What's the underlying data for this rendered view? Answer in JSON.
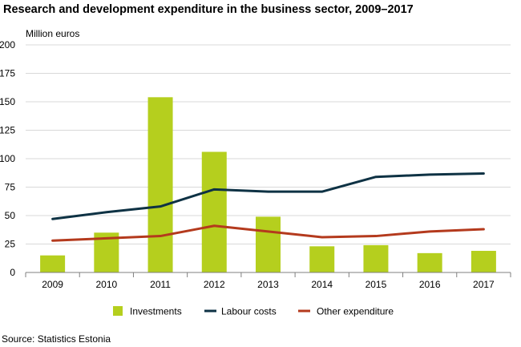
{
  "title": "Research and development expenditure in the business sector, 2009–2017",
  "source": "Source: Statistics Estonia",
  "colors": {
    "investments": "#b5cf1e",
    "labour_costs": "#0e3244",
    "other_expenditure": "#b43a1d",
    "grid": "#d9d9d9",
    "axis": "#7f7f7f"
  },
  "chart_data": {
    "type": "bar",
    "title": "Research and development expenditure in the business sector, 2009–2017",
    "ylabel": "Million euros",
    "xlabel": "",
    "ylim": [
      0,
      200
    ],
    "yticks": [
      0,
      25,
      50,
      75,
      100,
      125,
      150,
      175,
      200
    ],
    "grid": true,
    "legend_position": "bottom",
    "categories": [
      "2009",
      "2010",
      "2011",
      "2012",
      "2013",
      "2014",
      "2015",
      "2016",
      "2017"
    ],
    "series": [
      {
        "name": "Investments",
        "type": "bar",
        "values": [
          15,
          35,
          154,
          106,
          49,
          23,
          24,
          17,
          19
        ]
      },
      {
        "name": "Labour costs",
        "type": "line",
        "values": [
          47,
          53,
          58,
          73,
          71,
          71,
          84,
          86,
          87
        ]
      },
      {
        "name": "Other expenditure",
        "type": "line",
        "values": [
          28,
          30,
          32,
          41,
          36,
          31,
          32,
          36,
          38
        ]
      }
    ]
  }
}
